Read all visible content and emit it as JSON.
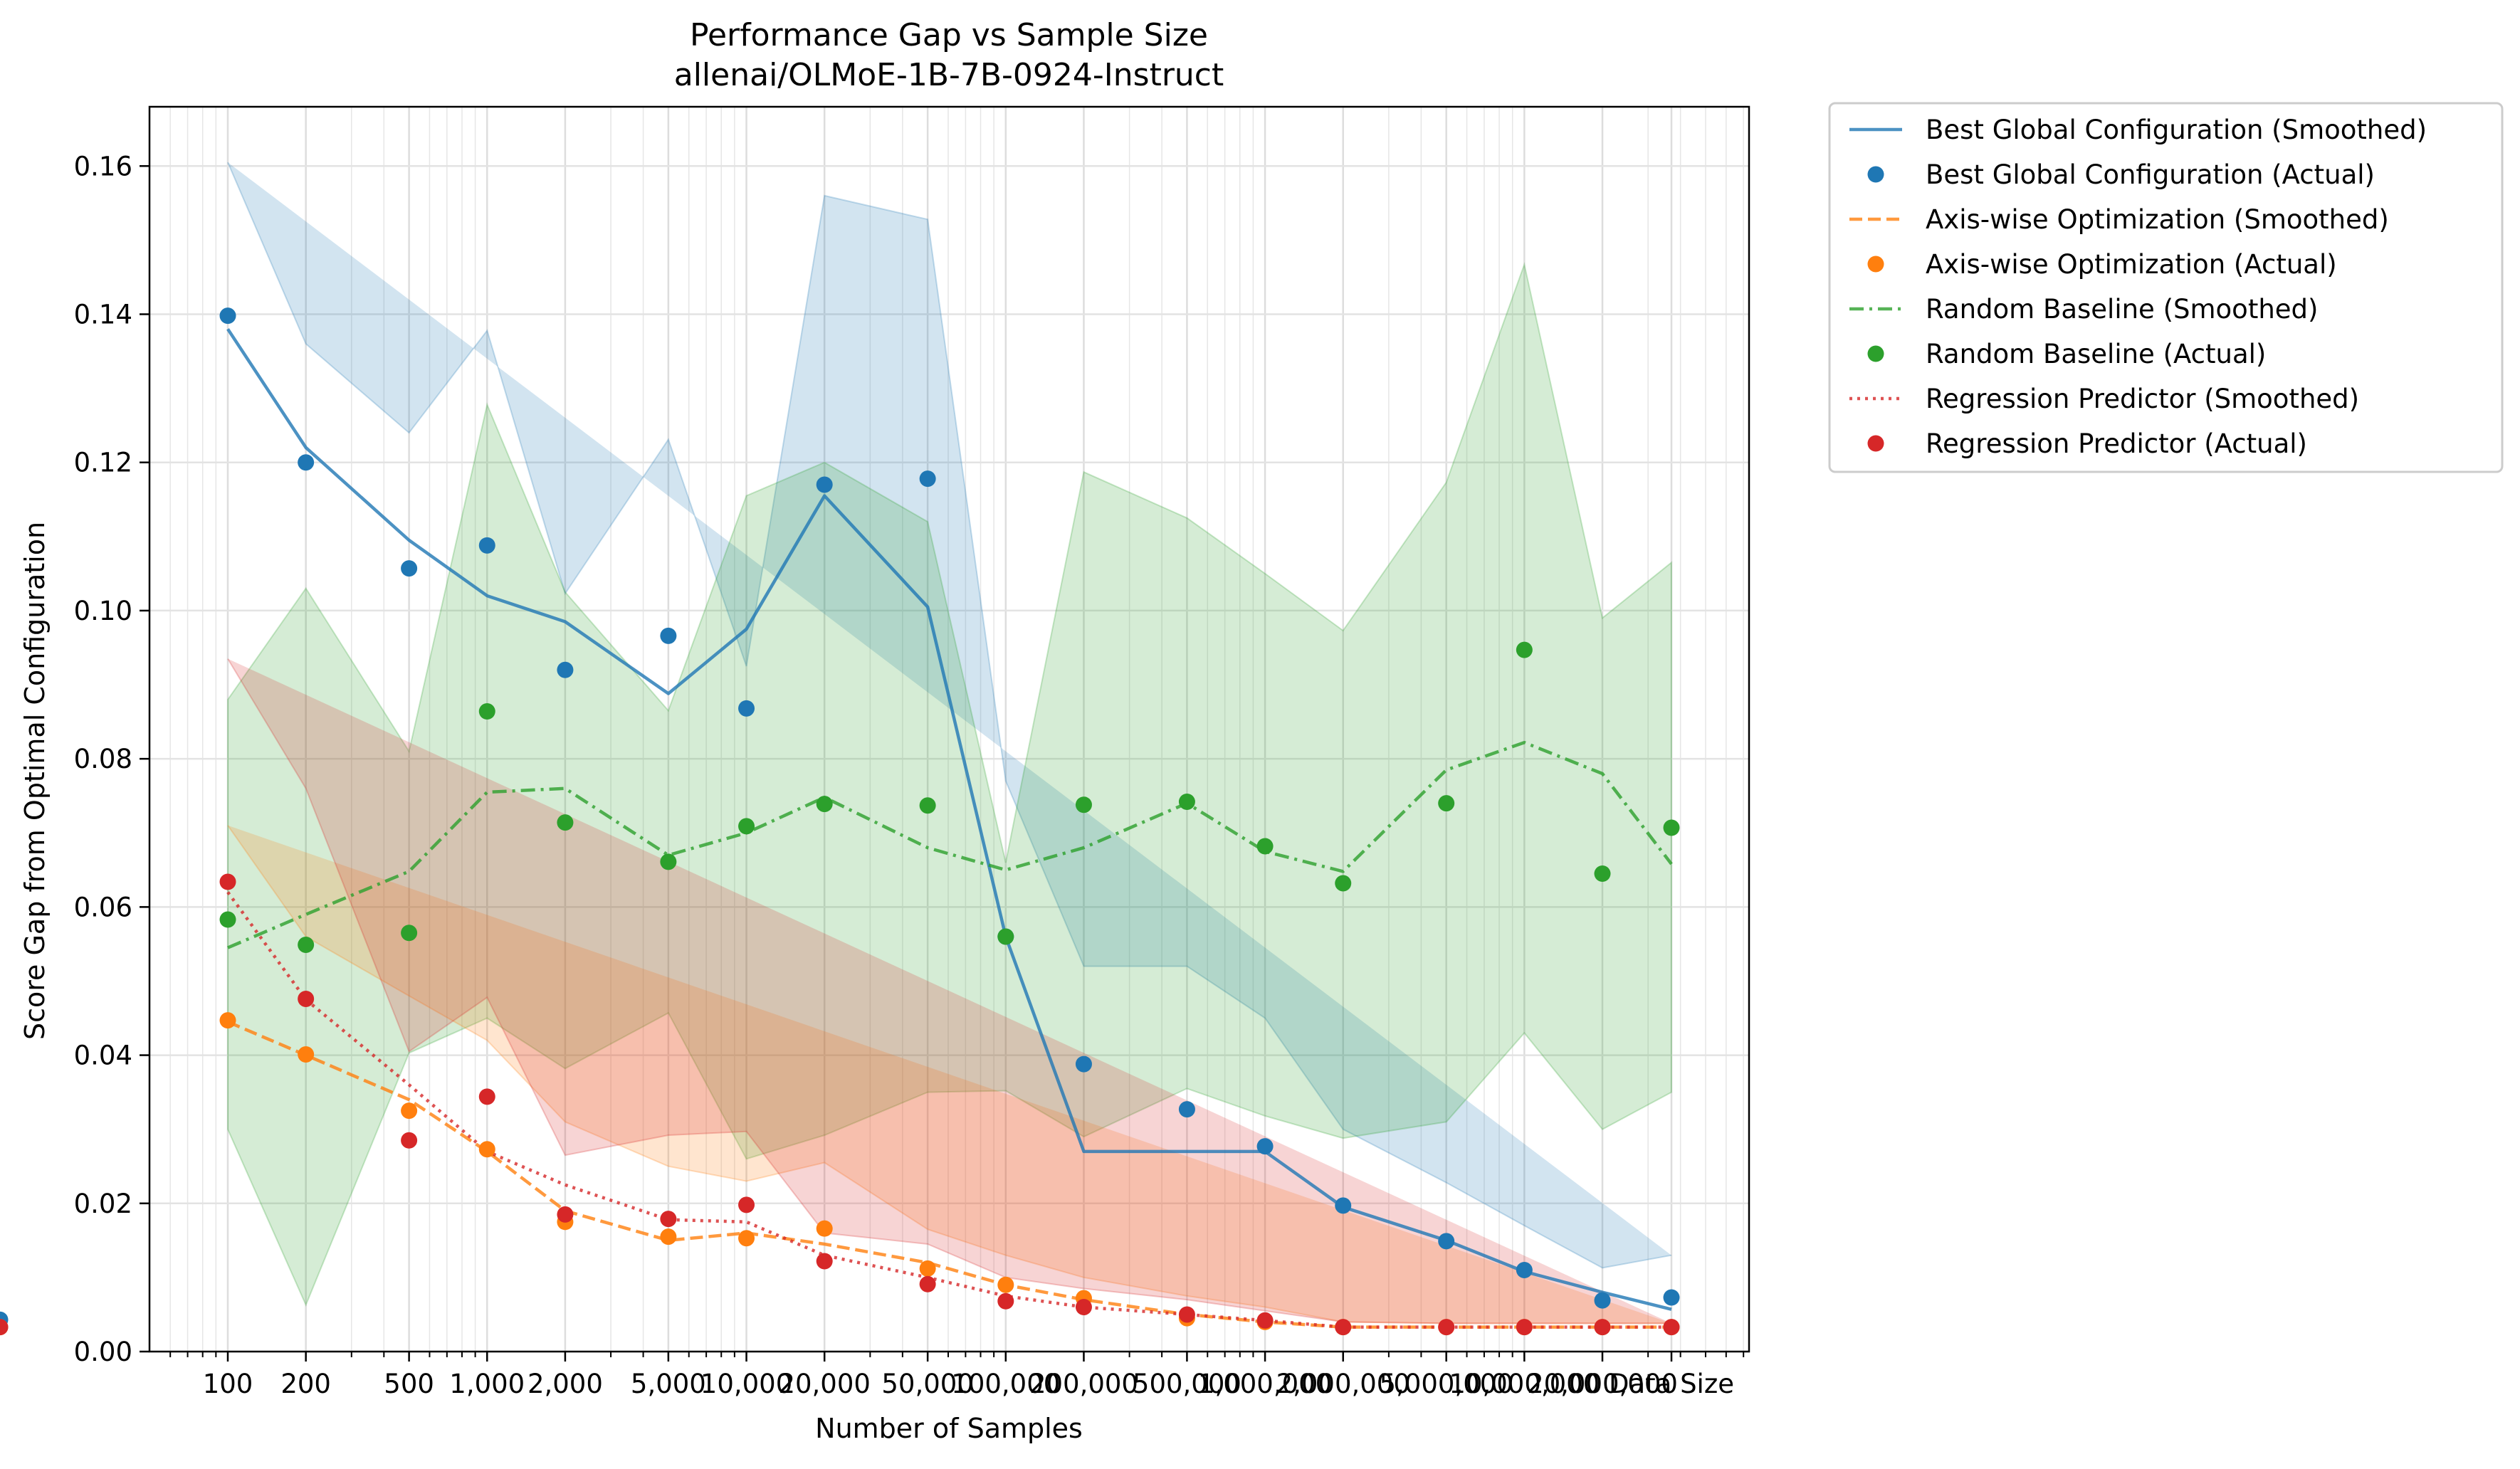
{
  "chart_data": {
    "type": "line",
    "title": "Performance Gap vs Sample Size",
    "subtitle": "allenai/OLMoE-1B-7B-0924-Instruct",
    "xlabel": "Number of Samples",
    "ylabel": "Score Gap from Optimal Configuration",
    "x_scale": "log",
    "ylim": [
      0,
      0.168
    ],
    "grid": true,
    "legend_position": "outside-top-right",
    "x_ticks": [
      "100",
      "200",
      "500",
      "1,000",
      "2,000",
      "5,000",
      "10,000",
      "20,000",
      "50,000",
      "100,000",
      "200,000",
      "500,000",
      "1,000,000",
      "2,000,000",
      "5,000,000",
      "10,000,000",
      "20,000,000",
      "Data Size"
    ],
    "y_ticks": [
      "0.00",
      "0.02",
      "0.04",
      "0.06",
      "0.08",
      "0.10",
      "0.12",
      "0.14",
      "0.16"
    ],
    "series": [
      {
        "name": "Best Global Configuration",
        "legend_smoothed": "Best Global Configuration (Smoothed)",
        "legend_actual": "Best Global Configuration (Actual)",
        "color": "#1f77b4",
        "line_style": "solid",
        "actual": [
          0.1398,
          0.12,
          0.1057,
          0.1088,
          0.092,
          0.0966,
          0.0868,
          0.117,
          0.1178,
          0.056,
          0.0388,
          0.0327,
          0.0277,
          0.0197,
          0.0149,
          0.011,
          0.0069,
          0.0073,
          0.0043
        ],
        "smoothed": [
          0.138,
          0.122,
          0.1095,
          0.102,
          0.0985,
          0.0888,
          0.0975,
          0.1155,
          0.1005,
          0.056,
          0.027,
          0.027,
          0.027,
          0.0195,
          0.015,
          0.0108,
          0.008,
          0.0057,
          0.0045
        ],
        "band_upper": [
          0.1605,
          0.136,
          0.124,
          0.1378,
          0.1023,
          0.1231,
          0.0925,
          0.156,
          0.1528,
          0.077,
          0.052,
          0.052,
          0.045,
          0.03,
          0.0228,
          0.017,
          0.0113,
          0.013,
          0.0075
        ],
        "band_lower": [
          0.119,
          0.1085,
          0.087,
          0.08,
          0.081,
          0.07,
          0.09,
          0.078,
          0.083,
          0.013,
          0.014,
          0.0135,
          0.011,
          0.009,
          0.007,
          0.005,
          0.0035,
          0.0022,
          0.001
        ]
      },
      {
        "name": "Axis-wise Optimization",
        "legend_smoothed": "Axis-wise Optimization (Smoothed)",
        "legend_actual": "Axis-wise Optimization (Actual)",
        "color": "#ff7f0e",
        "line_style": "dashed",
        "actual": [
          0.0447,
          0.0401,
          0.0325,
          0.0273,
          0.0175,
          0.0155,
          0.0153,
          0.0166,
          0.0112,
          0.009,
          0.0072,
          0.0045,
          0.004,
          0.0033,
          0.0033,
          0.0033,
          0.0033,
          0.0033,
          0.0033
        ],
        "smoothed": [
          0.0445,
          0.04,
          0.034,
          0.027,
          0.019,
          0.015,
          0.016,
          0.0145,
          0.012,
          0.009,
          0.007,
          0.005,
          0.004,
          0.0033,
          0.0033,
          0.0033,
          0.0033,
          0.0033,
          0.0033
        ],
        "band_upper": [
          0.071,
          0.056,
          0.048,
          0.042,
          0.031,
          0.025,
          0.023,
          0.0255,
          0.0165,
          0.013,
          0.01,
          0.0075,
          0.006,
          0.004,
          0.0038,
          0.0038,
          0.0038,
          0.0038,
          0.0038
        ],
        "band_lower": [
          0.018,
          0.025,
          0.02,
          0.0165,
          0.004,
          0.008,
          0.01,
          0.008,
          0.0065,
          0.005,
          0.004,
          0.003,
          0.003,
          0.0028,
          0.0028,
          0.0028,
          0.0028,
          0.0028,
          0.0028
        ]
      },
      {
        "name": "Random Baseline",
        "legend_smoothed": "Random Baseline (Smoothed)",
        "legend_actual": "Random Baseline (Actual)",
        "color": "#2ca02c",
        "line_style": "dashdot",
        "actual": [
          0.0583,
          0.0549,
          0.0565,
          0.0864,
          0.0714,
          0.0661,
          0.0709,
          0.0739,
          0.0737,
          0.056,
          0.0738,
          0.0742,
          0.0682,
          0.0632,
          0.074,
          0.0947,
          0.0645,
          0.0707
        ],
        "smoothed": [
          0.0545,
          0.059,
          0.0648,
          0.0755,
          0.076,
          0.067,
          0.07,
          0.0748,
          0.068,
          0.065,
          0.068,
          0.074,
          0.0675,
          0.0648,
          0.0785,
          0.0822,
          0.078,
          0.0658
        ],
        "band_upper": [
          0.088,
          0.103,
          0.081,
          0.1278,
          0.1025,
          0.0865,
          0.1155,
          0.12,
          0.112,
          0.066,
          0.1187,
          0.1125,
          0.105,
          0.0973,
          0.1173,
          0.1467,
          0.099,
          0.1065
        ],
        "band_lower": [
          0.03,
          0.0063,
          0.0403,
          0.045,
          0.0382,
          0.0457,
          0.026,
          0.0292,
          0.035,
          0.0352,
          0.029,
          0.0355,
          0.0318,
          0.0288,
          0.031,
          0.043,
          0.03,
          0.035
        ]
      },
      {
        "name": "Regression Predictor",
        "legend_smoothed": "Regression Predictor (Smoothed)",
        "legend_actual": "Regression Predictor (Actual)",
        "color": "#d62728",
        "line_style": "dotted",
        "actual": [
          0.0634,
          0.0476,
          0.0285,
          0.0344,
          0.0185,
          0.0179,
          0.0198,
          0.0122,
          0.0091,
          0.0068,
          0.006,
          0.005,
          0.0042,
          0.0033,
          0.0033,
          0.0033,
          0.0033,
          0.0033,
          0.0033
        ],
        "smoothed": [
          0.062,
          0.0475,
          0.036,
          0.027,
          0.0225,
          0.0178,
          0.0175,
          0.013,
          0.01,
          0.0075,
          0.006,
          0.005,
          0.0042,
          0.0033,
          0.0033,
          0.0033,
          0.0033,
          0.0033,
          0.0033
        ],
        "band_upper": [
          0.0935,
          0.076,
          0.0405,
          0.0478,
          0.0265,
          0.0292,
          0.0297,
          0.016,
          0.0145,
          0.01,
          0.0085,
          0.007,
          0.0055,
          0.004,
          0.0038,
          0.0038,
          0.0038,
          0.0038,
          0.0038
        ],
        "band_lower": [
          0.034,
          0.0192,
          0.017,
          0.0232,
          0.018,
          0.0065,
          0.006,
          0.007,
          0.004,
          0.0025,
          0.002,
          0.0022,
          0.0025,
          0.0026,
          0.0026,
          0.0026,
          0.0026,
          0.0026,
          0.0026
        ]
      }
    ]
  }
}
